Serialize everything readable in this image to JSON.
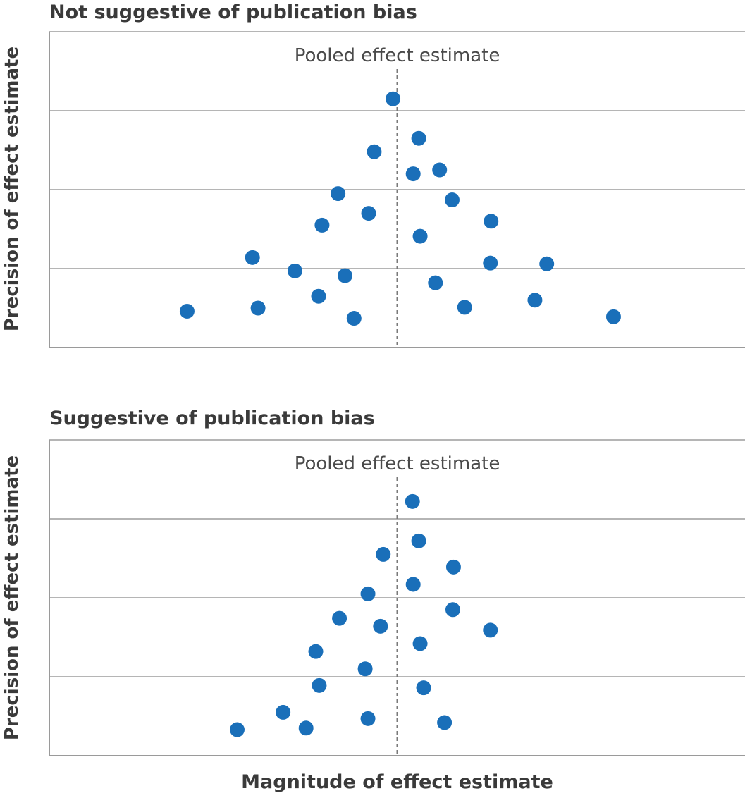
{
  "axis_labels": {
    "y": "Precision of effect estimate",
    "x": "Magnitude of effect estimate"
  },
  "colors": {
    "point": "#1a6fb9",
    "axis": "#9a9a9a",
    "gridline": "#b5b5b5",
    "pooled_line": "#7a7a7a",
    "text": "#3a3a3a"
  },
  "chart_data": [
    {
      "type": "scatter",
      "title": "Not suggestive of publication bias",
      "xlabel": "Magnitude of effect estimate",
      "ylabel": "Precision of effect estimate",
      "xlim": [
        -5,
        5
      ],
      "ylim": [
        0,
        4
      ],
      "grid": true,
      "reference_line": {
        "x": 0,
        "label": "Pooled effect estimate"
      },
      "points": [
        {
          "x": -0.06,
          "y": 3.15
        },
        {
          "x": 0.31,
          "y": 2.65
        },
        {
          "x": -0.33,
          "y": 2.48
        },
        {
          "x": 0.23,
          "y": 2.2
        },
        {
          "x": 0.61,
          "y": 2.25
        },
        {
          "x": -0.85,
          "y": 1.95
        },
        {
          "x": 0.79,
          "y": 1.87
        },
        {
          "x": -0.41,
          "y": 1.7
        },
        {
          "x": -1.08,
          "y": 1.55
        },
        {
          "x": 1.35,
          "y": 1.6
        },
        {
          "x": 0.33,
          "y": 1.41
        },
        {
          "x": -2.08,
          "y": 1.14
        },
        {
          "x": -1.47,
          "y": 0.97
        },
        {
          "x": -0.75,
          "y": 0.91
        },
        {
          "x": 1.34,
          "y": 1.07
        },
        {
          "x": 2.15,
          "y": 1.06
        },
        {
          "x": 0.55,
          "y": 0.82
        },
        {
          "x": -1.13,
          "y": 0.65
        },
        {
          "x": -3.02,
          "y": 0.46
        },
        {
          "x": -2.0,
          "y": 0.5
        },
        {
          "x": 0.97,
          "y": 0.51
        },
        {
          "x": 1.98,
          "y": 0.6
        },
        {
          "x": -0.62,
          "y": 0.37
        },
        {
          "x": 3.11,
          "y": 0.39
        }
      ]
    },
    {
      "type": "scatter",
      "title": "Suggestive of publication bias",
      "xlabel": "Magnitude of effect estimate",
      "ylabel": "Precision of effect estimate",
      "xlim": [
        -5,
        5
      ],
      "ylim": [
        0,
        4
      ],
      "grid": true,
      "reference_line": {
        "x": 0,
        "label": "Pooled effect estimate"
      },
      "points": [
        {
          "x": 0.22,
          "y": 3.22
        },
        {
          "x": 0.31,
          "y": 2.72
        },
        {
          "x": -0.2,
          "y": 2.55
        },
        {
          "x": 0.81,
          "y": 2.39
        },
        {
          "x": 0.23,
          "y": 2.17
        },
        {
          "x": -0.42,
          "y": 2.05
        },
        {
          "x": 0.8,
          "y": 1.85
        },
        {
          "x": -0.83,
          "y": 1.74
        },
        {
          "x": -0.24,
          "y": 1.64
        },
        {
          "x": 1.34,
          "y": 1.59
        },
        {
          "x": 0.33,
          "y": 1.42
        },
        {
          "x": -1.17,
          "y": 1.32
        },
        {
          "x": -0.46,
          "y": 1.1
        },
        {
          "x": -1.12,
          "y": 0.89
        },
        {
          "x": 0.38,
          "y": 0.86
        },
        {
          "x": -1.64,
          "y": 0.55
        },
        {
          "x": -0.42,
          "y": 0.47
        },
        {
          "x": 0.68,
          "y": 0.42
        },
        {
          "x": -2.3,
          "y": 0.33
        },
        {
          "x": -1.31,
          "y": 0.35
        }
      ]
    }
  ]
}
